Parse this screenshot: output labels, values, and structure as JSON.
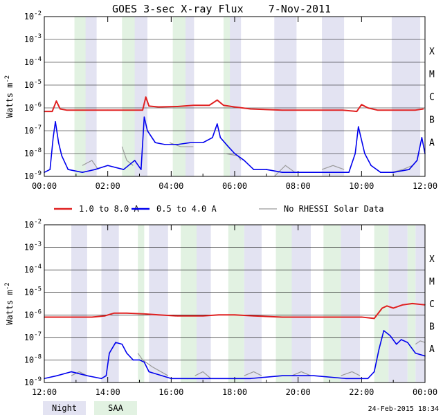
{
  "title": "GOES 3-sec X-ray Flux    7-Nov-2011",
  "footer_stamp": "24-Feb-2015 18:34",
  "colors": {
    "long": "#e02020",
    "short": "#0000ee",
    "no_data": "#9a9a9a",
    "night": "#e3e3f2",
    "saa": "#e2f2e2",
    "grid": "#000000"
  },
  "legend_top": [
    {
      "label": "1.0 to 8.0 A",
      "color": "#e02020"
    },
    {
      "label": "0.5 to 4.0 A",
      "color": "#0000ee"
    },
    {
      "label": "No RHESSI Solar Data",
      "color": "#9a9a9a"
    }
  ],
  "legend_bottom": [
    {
      "label": "Night",
      "color": "#e3e3f2"
    },
    {
      "label": "SAA",
      "color": "#e2f2e2"
    }
  ],
  "chart_data": [
    {
      "type": "line",
      "ylabel": "Watts m",
      "ylabel_sup": "-2",
      "yscale": "log",
      "ylim_exp": [
        -9,
        -2
      ],
      "ytick_exps": [
        -9,
        -8,
        -7,
        -6,
        -5,
        -4,
        -3,
        -2
      ],
      "flare_classes": [
        "A",
        "B",
        "C",
        "M",
        "X"
      ],
      "xlim_hours": [
        0,
        12
      ],
      "xticks": [
        "00:00",
        "02:00",
        "04:00",
        "06:00",
        "08:00",
        "10:00",
        "12:00"
      ],
      "night": [
        [
          1.25,
          1.65
        ],
        [
          2.8,
          3.25
        ],
        [
          4.3,
          4.72
        ],
        [
          5.75,
          6.2
        ],
        [
          7.25,
          7.95
        ],
        [
          8.75,
          9.45
        ],
        [
          10.95,
          11.85
        ]
      ],
      "saa": [
        [
          0.95,
          1.3
        ],
        [
          2.45,
          2.85
        ],
        [
          4.05,
          4.45
        ],
        [
          5.65,
          5.85
        ]
      ],
      "series": [
        {
          "name": "1.0 to 8.0 A",
          "key": "long",
          "points": [
            [
              0.0,
              7e-07
            ],
            [
              0.25,
              7e-07
            ],
            [
              0.38,
              2e-06
            ],
            [
              0.5,
              9e-07
            ],
            [
              0.7,
              8e-07
            ],
            [
              1.2,
              8e-07
            ],
            [
              1.6,
              8e-07
            ],
            [
              2.0,
              8e-07
            ],
            [
              2.5,
              8e-07
            ],
            [
              3.1,
              8e-07
            ],
            [
              3.2,
              3e-06
            ],
            [
              3.3,
              1.2e-06
            ],
            [
              3.6,
              1.1e-06
            ],
            [
              4.2,
              1.15e-06
            ],
            [
              4.7,
              1.3e-06
            ],
            [
              5.2,
              1.3e-06
            ],
            [
              5.45,
              2.2e-06
            ],
            [
              5.65,
              1.3e-06
            ],
            [
              6.0,
              1.1e-06
            ],
            [
              6.5,
              9e-07
            ],
            [
              7.5,
              8e-07
            ],
            [
              8.5,
              8e-07
            ],
            [
              9.4,
              8e-07
            ],
            [
              9.85,
              7e-07
            ],
            [
              10.0,
              1.4e-06
            ],
            [
              10.2,
              1e-06
            ],
            [
              10.5,
              8e-07
            ],
            [
              11.0,
              8e-07
            ],
            [
              11.7,
              8e-07
            ],
            [
              11.95,
              9e-07
            ]
          ]
        },
        {
          "name": "0.5 to 4.0 A",
          "key": "short",
          "points": [
            [
              0.0,
              1.5e-09
            ],
            [
              0.18,
              2e-09
            ],
            [
              0.28,
              5e-08
            ],
            [
              0.35,
              2.5e-07
            ],
            [
              0.45,
              3e-08
            ],
            [
              0.55,
              8e-09
            ],
            [
              0.75,
              2e-09
            ],
            [
              1.2,
              1.5e-09
            ],
            [
              1.6,
              2e-09
            ],
            [
              2.0,
              3e-09
            ],
            [
              2.5,
              2e-09
            ],
            [
              2.85,
              5e-09
            ],
            [
              3.05,
              2e-09
            ],
            [
              3.15,
              4e-07
            ],
            [
              3.25,
              1e-07
            ],
            [
              3.5,
              3e-08
            ],
            [
              3.8,
              2.5e-08
            ],
            [
              4.2,
              2.5e-08
            ],
            [
              4.6,
              3e-08
            ],
            [
              5.0,
              3e-08
            ],
            [
              5.3,
              5e-08
            ],
            [
              5.45,
              2e-07
            ],
            [
              5.55,
              5e-08
            ],
            [
              5.8,
              2e-08
            ],
            [
              6.0,
              1e-08
            ],
            [
              6.3,
              5e-09
            ],
            [
              6.6,
              2e-09
            ],
            [
              7.0,
              2e-09
            ],
            [
              7.5,
              1.5e-09
            ],
            [
              8.0,
              1.5e-09
            ],
            [
              8.5,
              1.5e-09
            ],
            [
              9.0,
              1.5e-09
            ],
            [
              9.6,
              1.5e-09
            ],
            [
              9.8,
              1e-08
            ],
            [
              9.9,
              1.5e-07
            ],
            [
              10.1,
              1e-08
            ],
            [
              10.3,
              3e-09
            ],
            [
              10.6,
              1.5e-09
            ],
            [
              11.0,
              1.5e-09
            ],
            [
              11.5,
              2e-09
            ],
            [
              11.75,
              5e-09
            ],
            [
              11.9,
              5e-08
            ],
            [
              12.0,
              1e-08
            ]
          ]
        }
      ],
      "no_data_series": [
        [
          [
            1.2,
            3e-09
          ],
          [
            1.5,
            5e-09
          ],
          [
            1.7,
            2e-09
          ]
        ],
        [
          [
            2.45,
            2e-08
          ],
          [
            2.6,
            5e-09
          ],
          [
            2.8,
            3e-09
          ]
        ],
        [
          [
            3.95,
            3e-08
          ],
          [
            4.3,
            2e-08
          ],
          [
            4.7,
            2e-08
          ]
        ],
        [
          [
            5.7,
            1e-08
          ],
          [
            6.1,
            8e-09
          ],
          [
            6.2,
            5e-09
          ]
        ],
        [
          [
            7.25,
            1e-09
          ],
          [
            7.6,
            3e-09
          ],
          [
            7.9,
            1.5e-09
          ]
        ],
        [
          [
            8.75,
            2e-09
          ],
          [
            9.1,
            3e-09
          ],
          [
            9.45,
            2e-09
          ]
        ],
        [
          [
            10.95,
            1.5e-09
          ],
          [
            11.3,
            2e-09
          ],
          [
            11.6,
            3e-09
          ]
        ]
      ]
    },
    {
      "type": "line",
      "ylabel": "Watts m",
      "ylabel_sup": "-2",
      "yscale": "log",
      "ylim_exp": [
        -9,
        -2
      ],
      "ytick_exps": [
        -9,
        -8,
        -7,
        -6,
        -5,
        -4,
        -3,
        -2
      ],
      "flare_classes": [
        "A",
        "B",
        "C",
        "M",
        "X"
      ],
      "xlim_hours": [
        12,
        24
      ],
      "xticks": [
        "12:00",
        "14:00",
        "16:00",
        "18:00",
        "20:00",
        "22:00",
        "00:00"
      ],
      "night": [
        [
          12.85,
          13.35
        ],
        [
          13.8,
          14.35
        ],
        [
          15.3,
          15.9
        ],
        [
          16.75,
          17.25
        ],
        [
          18.3,
          18.85
        ],
        [
          19.8,
          20.4
        ],
        [
          21.35,
          21.95
        ],
        [
          22.85,
          23.45
        ],
        [
          23.7,
          24.0
        ]
      ],
      "saa": [
        [
          14.95,
          15.15
        ],
        [
          16.3,
          16.8
        ],
        [
          17.8,
          18.3
        ],
        [
          19.3,
          19.8
        ],
        [
          20.8,
          21.35
        ],
        [
          22.4,
          22.85
        ],
        [
          23.45,
          23.7
        ]
      ],
      "series": [
        {
          "name": "1.0 to 8.0 A",
          "key": "long",
          "points": [
            [
              12.0,
              8e-07
            ],
            [
              12.5,
              8e-07
            ],
            [
              13.0,
              8e-07
            ],
            [
              13.5,
              8e-07
            ],
            [
              13.9,
              9e-07
            ],
            [
              14.2,
              1.2e-06
            ],
            [
              14.6,
              1.2e-06
            ],
            [
              15.2,
              1.1e-06
            ],
            [
              15.6,
              1e-06
            ],
            [
              16.2,
              9e-07
            ],
            [
              17.0,
              9e-07
            ],
            [
              17.5,
              1e-06
            ],
            [
              18.0,
              1e-06
            ],
            [
              18.6,
              9e-07
            ],
            [
              19.5,
              8e-07
            ],
            [
              20.5,
              8e-07
            ],
            [
              21.2,
              8e-07
            ],
            [
              22.0,
              8e-07
            ],
            [
              22.4,
              7e-07
            ],
            [
              22.65,
              2e-06
            ],
            [
              22.8,
              2.5e-06
            ],
            [
              23.0,
              2e-06
            ],
            [
              23.3,
              2.8e-06
            ],
            [
              23.6,
              3.2e-06
            ],
            [
              24.0,
              2.8e-06
            ]
          ]
        },
        {
          "name": "0.5 to 4.0 A",
          "key": "short",
          "points": [
            [
              12.0,
              1.5e-09
            ],
            [
              12.4,
              2e-09
            ],
            [
              12.85,
              3e-09
            ],
            [
              13.35,
              2e-09
            ],
            [
              13.8,
              1.5e-09
            ],
            [
              13.95,
              2e-09
            ],
            [
              14.05,
              2e-08
            ],
            [
              14.25,
              6e-08
            ],
            [
              14.45,
              5e-08
            ],
            [
              14.6,
              2e-08
            ],
            [
              14.8,
              1e-08
            ],
            [
              15.0,
              1e-08
            ],
            [
              15.15,
              8e-09
            ],
            [
              15.3,
              3e-09
            ],
            [
              16.0,
              1.5e-09
            ],
            [
              16.5,
              1.5e-09
            ],
            [
              17.5,
              1.5e-09
            ],
            [
              18.5,
              1.5e-09
            ],
            [
              19.5,
              2e-09
            ],
            [
              20.5,
              2e-09
            ],
            [
              21.5,
              1.5e-09
            ],
            [
              22.2,
              1.5e-09
            ],
            [
              22.4,
              3e-09
            ],
            [
              22.55,
              3e-08
            ],
            [
              22.7,
              2e-07
            ],
            [
              22.9,
              1.2e-07
            ],
            [
              23.1,
              5e-08
            ],
            [
              23.25,
              8e-08
            ],
            [
              23.45,
              6e-08
            ],
            [
              23.7,
              2e-08
            ],
            [
              24.0,
              1.5e-08
            ]
          ]
        }
      ],
      "no_data_series": [
        [
          [
            12.85,
            2e-09
          ],
          [
            13.1,
            3e-09
          ],
          [
            13.35,
            2e-09
          ]
        ],
        [
          [
            14.95,
            2e-08
          ],
          [
            15.1,
            1e-08
          ],
          [
            15.4,
            5e-09
          ],
          [
            15.9,
            2e-09
          ]
        ],
        [
          [
            16.75,
            2e-09
          ],
          [
            17.0,
            3e-09
          ],
          [
            17.25,
            1.5e-09
          ]
        ],
        [
          [
            18.3,
            2e-09
          ],
          [
            18.6,
            3e-09
          ],
          [
            18.85,
            2e-09
          ]
        ],
        [
          [
            19.8,
            2e-09
          ],
          [
            20.1,
            3e-09
          ],
          [
            20.4,
            2e-09
          ]
        ],
        [
          [
            21.35,
            2e-09
          ],
          [
            21.7,
            3e-09
          ],
          [
            21.95,
            2e-09
          ]
        ],
        [
          [
            23.7,
            5e-08
          ],
          [
            23.85,
            7e-08
          ],
          [
            24.0,
            6e-08
          ]
        ]
      ]
    }
  ]
}
